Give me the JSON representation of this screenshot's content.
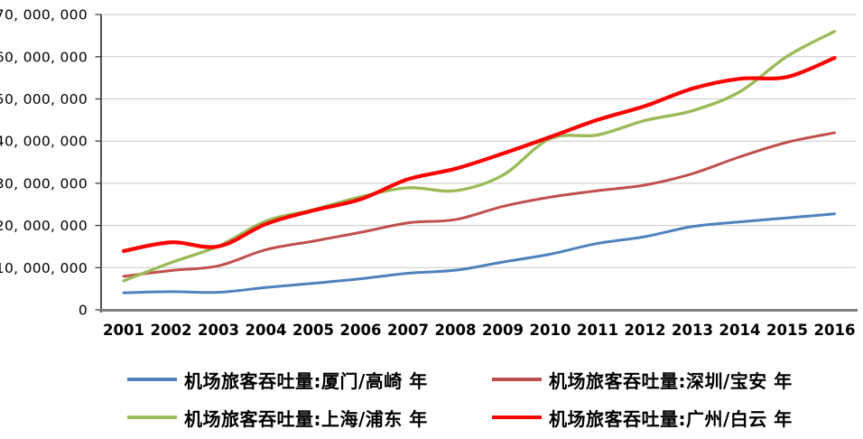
{
  "page": {
    "background": "#FFFFFF"
  },
  "chart_data": {
    "type": "line",
    "title": "",
    "xlabel": "",
    "ylabel": "",
    "x": [
      2001,
      2002,
      2003,
      2004,
      2005,
      2006,
      2007,
      2008,
      2009,
      2010,
      2011,
      2012,
      2013,
      2014,
      2015,
      2016
    ],
    "ylim": [
      0,
      70000000
    ],
    "ytick_step": 10000000,
    "ytick_labels": [
      "0",
      "10, 000, 000",
      "20, 000, 000",
      "30, 000, 000",
      "40, 000, 000",
      "50, 000, 000",
      "60, 000, 000",
      "70, 000, 000"
    ],
    "grid": true,
    "grid_color": "#C9C9C9",
    "axis_color": "#808080",
    "y_axis_color": "#404040",
    "text_color": "#000000",
    "legend_position": "bottom",
    "legend_rows": [
      [
        "xiamen-gaoqi",
        "shenzhen-baoan"
      ],
      [
        "shanghai-pudong",
        "guangzhou-baiyun"
      ]
    ],
    "series": [
      {
        "key": "xiamen-gaoqi",
        "name": "机场旅客吞吐量:厦门/高崎 年",
        "color": "#4F81BD",
        "values": [
          4050000,
          4300000,
          4150000,
          5300000,
          6290000,
          7350000,
          8680000,
          9390000,
          11330000,
          13200000,
          15750000,
          17350000,
          19750000,
          20860000,
          21800000,
          22740000
        ]
      },
      {
        "key": "shenzhen-baoan",
        "name": "机场旅客吞吐量:深圳/宝安 年",
        "color": "#C0504D",
        "values": [
          7960000,
          9320000,
          10430000,
          14250000,
          16280000,
          18360000,
          20620000,
          21400000,
          24510000,
          26710000,
          28240000,
          29570000,
          32270000,
          36270000,
          39720000,
          41980000
        ]
      },
      {
        "key": "shanghai-pudong",
        "name": "机场旅客吞吐量:上海/浦东 年",
        "color": "#9BBB59",
        "values": [
          6870000,
          11200000,
          15100000,
          21020000,
          23720000,
          26790000,
          28920000,
          28240000,
          31920000,
          40580000,
          41450000,
          44880000,
          47190000,
          51690000,
          60100000,
          66000000
        ]
      },
      {
        "key": "guangzhou-baiyun",
        "name": "机场旅客吞吐量:广州/白云 年",
        "color": "#FF0000",
        "values": [
          13940000,
          16010000,
          15030000,
          20330000,
          23550000,
          26220000,
          30960000,
          33440000,
          37050000,
          40980000,
          45040000,
          48310000,
          52450000,
          54780000,
          55200000,
          59730000
        ]
      }
    ]
  }
}
